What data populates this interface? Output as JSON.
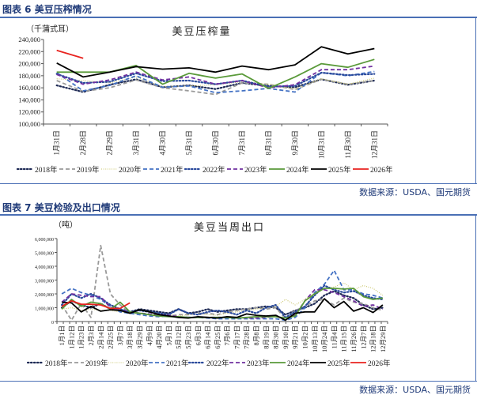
{
  "figures": [
    {
      "label": "图表 6 美豆压榨情况",
      "source": "数据来源：USDA、国元期货"
    },
    {
      "label": "图表 7 美豆检验及出口情况",
      "source": "数据来源：USDA、国元期货"
    }
  ],
  "colors": {
    "2018": "#1e2a55",
    "2019": "#9a9a9a",
    "2020": "#c9c56a",
    "2021": "#4472c4",
    "2022": "#2a4a9c",
    "2023": "#7030a0",
    "2024": "#5a9a3a",
    "2025": "#000000",
    "2026": "#e8231f"
  },
  "chart_data": [
    {
      "type": "line",
      "title": "美豆压榨量",
      "ylabel": "（千蒲式耳）",
      "xlabel": "",
      "ylim": [
        100000,
        240000
      ],
      "yticks": [
        100000,
        120000,
        140000,
        160000,
        180000,
        200000,
        220000,
        240000
      ],
      "ytick_labels": [
        "100,000",
        "120,000",
        "140,000",
        "160,000",
        "180,000",
        "200,000",
        "220,000",
        "240,000"
      ],
      "categories": [
        "1月31日",
        "2月28日",
        "2月29日",
        "3月31日",
        "4月30日",
        "5月31日",
        "6月30日",
        "7月31日",
        "8月31日",
        "9月30日",
        "10月31日",
        "11月30日",
        "12月31日"
      ],
      "legend_position": "bottom",
      "series": [
        {
          "name": "2018年",
          "style": "dot",
          "values": [
            164000,
            153000,
            165000,
            174000,
            161000,
            164000,
            158000,
            168000,
            163000,
            161000,
            174000,
            165000,
            172000
          ]
        },
        {
          "name": "2019年",
          "style": "dash",
          "values": [
            172000,
            154000,
            160000,
            173000,
            160000,
            155000,
            149000,
            168000,
            166000,
            157000,
            174000,
            166000,
            172000
          ]
        },
        {
          "name": "2020年",
          "style": "finedot",
          "values": [
            175000,
            172000,
            168000,
            178000,
            162000,
            163000,
            165000,
            170000,
            166000,
            158000,
            175000,
            166000,
            176000
          ]
        },
        {
          "name": "2021年",
          "style": "dash",
          "values": [
            185000,
            155000,
            164000,
            180000,
            161000,
            163000,
            152000,
            155000,
            159000,
            153000,
            185000,
            180000,
            187000
          ]
        },
        {
          "name": "2022年",
          "style": "dot",
          "values": [
            183000,
            168000,
            170000,
            184000,
            171000,
            172000,
            166000,
            172000,
            162000,
            163000,
            185000,
            181000,
            183000
          ]
        },
        {
          "name": "2023年",
          "style": "dash",
          "values": [
            182000,
            166000,
            173000,
            186000,
            173000,
            178000,
            166000,
            172000,
            160000,
            165000,
            190000,
            190000,
            196000
          ]
        },
        {
          "name": "2024年",
          "style": "solid",
          "values": [
            186000,
            186000,
            186000,
            197000,
            166000,
            184000,
            176000,
            183000,
            159000,
            178000,
            200000,
            194000,
            207000
          ]
        },
        {
          "name": "2025年",
          "style": "solid",
          "values": [
            201000,
            178000,
            186000,
            195000,
            191000,
            193000,
            186000,
            196000,
            190000,
            198000,
            228000,
            216000,
            225000
          ]
        },
        {
          "name": "2026年",
          "style": "solid",
          "values": [
            222000,
            209000,
            null,
            null,
            null,
            null,
            null,
            null,
            null,
            null,
            null,
            null,
            null
          ]
        }
      ]
    },
    {
      "type": "line",
      "title": "美豆当周出口",
      "ylabel": "（吨）",
      "xlabel": "",
      "ylim": [
        0,
        6000000
      ],
      "yticks": [
        0,
        1000000,
        2000000,
        3000000,
        4000000,
        5000000,
        6000000
      ],
      "ytick_labels": [
        "0",
        "1,000,000",
        "2,000,000",
        "3,000,000",
        "4,000,000",
        "5,000,000",
        "6,000,000"
      ],
      "categories": [
        "1月1日",
        "1月12日",
        "1月23日",
        "2月3日",
        "2月14日",
        "2月25日",
        "3月7日",
        "3月18日",
        "3月29日",
        "4月9日",
        "4月20日",
        "5月1日",
        "5月12日",
        "5月23日",
        "6月3日",
        "6月14日",
        "6月25日",
        "7月6日",
        "7月17日",
        "7月28日",
        "8月8日",
        "8月19日",
        "8月30日",
        "9月10日",
        "9月21日",
        "10月2日",
        "10月13日",
        "10月24日",
        "11月4日",
        "11月15日",
        "11月26日",
        "12月7日",
        "12月18日",
        "12月29日"
      ],
      "legend_position": "bottom",
      "series": [
        {
          "name": "2018年",
          "style": "dot",
          "values": [
            1000000,
            1500000,
            1200000,
            1000000,
            1300000,
            900000,
            800000,
            700000,
            900000,
            800000,
            700000,
            600000,
            900000,
            600000,
            700000,
            900000,
            700000,
            800000,
            900000,
            900000,
            1000000,
            1100000,
            1000000,
            500000,
            800000,
            1000000,
            1300000,
            1900000,
            2200000,
            1900000,
            1700000,
            1200000,
            900000,
            1000000
          ]
        },
        {
          "name": "2019年",
          "style": "dash",
          "values": [
            1200000,
            100000,
            1300000,
            300000,
            5500000,
            2000000,
            1200000,
            600000,
            600000,
            500000,
            400000,
            400000,
            500000,
            500000,
            600000,
            600000,
            500000,
            700000,
            800000,
            900000,
            1000000,
            900000,
            1000000,
            200000,
            800000,
            1100000,
            1500000,
            1600000,
            1200000,
            1700000,
            1400000,
            1300000,
            1000000,
            800000
          ]
        },
        {
          "name": "2020年",
          "style": "finedot",
          "values": [
            900000,
            1000000,
            800000,
            900000,
            800000,
            800000,
            700000,
            600000,
            600000,
            500000,
            450000,
            500000,
            400000,
            500000,
            550000,
            500000,
            450000,
            600000,
            700000,
            800000,
            900000,
            1000000,
            1100000,
            1600000,
            1200000,
            1600000,
            2100000,
            2400000,
            2500000,
            2800000,
            2300000,
            2600000,
            2400000,
            1900000
          ]
        },
        {
          "name": "2021年",
          "style": "dash",
          "values": [
            2000000,
            2400000,
            2100000,
            1900000,
            1600000,
            1100000,
            700000,
            600000,
            500000,
            400000,
            350000,
            400000,
            300000,
            300000,
            300000,
            250000,
            200000,
            200000,
            200000,
            200000,
            200000,
            200000,
            200000,
            100000,
            300000,
            1000000,
            2100000,
            2700000,
            3700000,
            2300000,
            2300000,
            2000000,
            1900000,
            1700000
          ]
        },
        {
          "name": "2022年",
          "style": "dot",
          "values": [
            1200000,
            2000000,
            1700000,
            2000000,
            1700000,
            1200000,
            900000,
            700000,
            800000,
            700000,
            600000,
            500000,
            900000,
            600000,
            500000,
            700000,
            800000,
            700000,
            500000,
            800000,
            600000,
            1000000,
            1200000,
            300000,
            700000,
            1100000,
            1900000,
            2600000,
            2300000,
            2100000,
            2200000,
            1900000,
            1700000,
            1600000
          ]
        },
        {
          "name": "2023年",
          "style": "dash",
          "values": [
            1400000,
            2000000,
            1900000,
            1800000,
            1800000,
            1000000,
            800000,
            700000,
            600000,
            550000,
            500000,
            450000,
            350000,
            300000,
            300000,
            300000,
            300000,
            300000,
            300000,
            250000,
            250000,
            300000,
            400000,
            200000,
            450000,
            1500000,
            2300000,
            2300000,
            2100000,
            1800000,
            1500000,
            1100000,
            1200000,
            900000
          ]
        },
        {
          "name": "2024年",
          "style": "solid",
          "values": [
            900000,
            1600000,
            1100000,
            1400000,
            1300000,
            900000,
            1400000,
            700000,
            600000,
            500000,
            400000,
            350000,
            350000,
            300000,
            300000,
            300000,
            300000,
            300000,
            250000,
            300000,
            350000,
            350000,
            350000,
            250000,
            400000,
            1500000,
            2000000,
            2400000,
            2400000,
            2350000,
            2400000,
            1800000,
            1600000,
            1700000
          ]
        },
        {
          "name": "2025年",
          "style": "solid",
          "values": [
            1400000,
            1350000,
            700000,
            1100000,
            750000,
            850000,
            800000,
            600000,
            850000,
            700000,
            500000,
            400000,
            300000,
            250000,
            350000,
            300000,
            250000,
            350000,
            300000,
            550000,
            450000,
            400000,
            450000,
            100000,
            600000,
            700000,
            700000,
            1650000,
            1000000,
            1450000,
            750000,
            1000000,
            650000,
            1200000
          ]
        },
        {
          "name": "2026年",
          "style": "solid",
          "values": [
            1100000,
            1500000,
            1250000,
            1250000,
            1200000,
            950000,
            950000,
            1350000,
            null,
            null,
            null,
            null,
            null,
            null,
            null,
            null,
            null,
            null,
            null,
            null,
            null,
            null,
            null,
            null,
            null,
            null,
            null,
            null,
            null,
            null,
            null,
            null,
            null,
            null
          ]
        }
      ]
    }
  ]
}
